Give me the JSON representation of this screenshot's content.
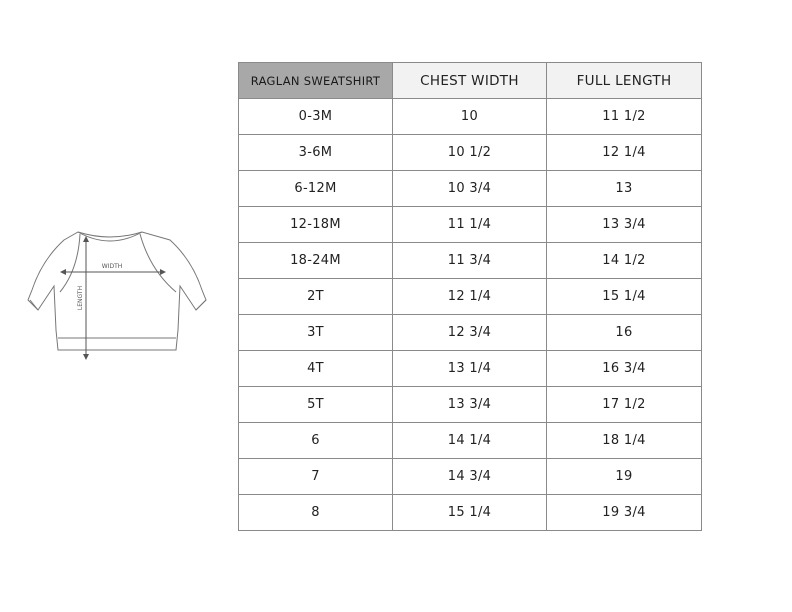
{
  "diagram": {
    "width_label": "WIDTH",
    "length_label": "LENGTH"
  },
  "table": {
    "header": [
      "RAGLAN SWEATSHIRT",
      "CHEST WIDTH",
      "FULL LENGTH"
    ],
    "rows": [
      [
        "0-3M",
        "10",
        "11 1/2"
      ],
      [
        "3-6M",
        "10 1/2",
        "12 1/4"
      ],
      [
        "6-12M",
        "10 3/4",
        "13"
      ],
      [
        "12-18M",
        "11 1/4",
        "13 3/4"
      ],
      [
        "18-24M",
        "11 3/4",
        "14 1/2"
      ],
      [
        "2T",
        "12 1/4",
        "15 1/4"
      ],
      [
        "3T",
        "12 3/4",
        "16"
      ],
      [
        "4T",
        "13 1/4",
        "16 3/4"
      ],
      [
        "5T",
        "13 3/4",
        "17 1/2"
      ],
      [
        "6",
        "14 1/4",
        "18 1/4"
      ],
      [
        "7",
        "14 3/4",
        "19"
      ],
      [
        "8",
        "15 1/4",
        "19 3/4"
      ]
    ]
  }
}
